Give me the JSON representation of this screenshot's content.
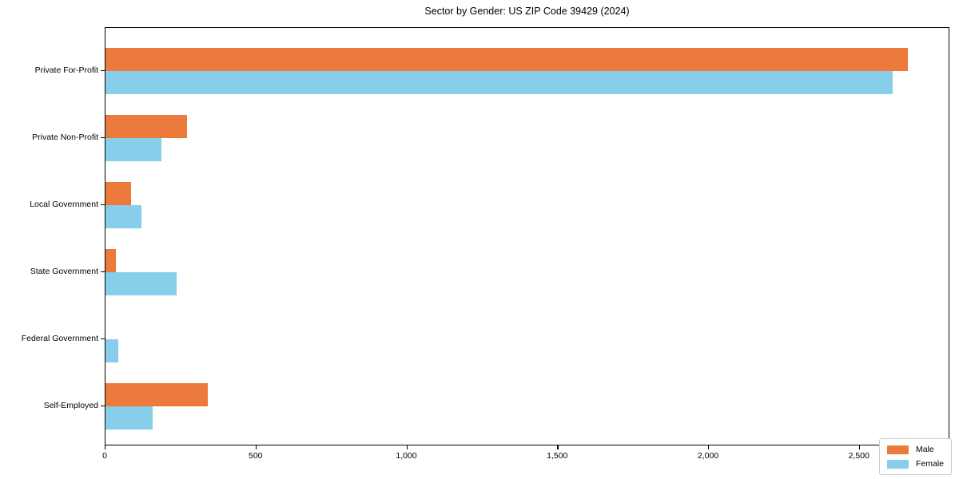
{
  "chart_data": {
    "type": "bar",
    "orientation": "horizontal",
    "title": "Sector by Gender: US ZIP Code 39429 (2024)",
    "categories": [
      "Private For-Profit",
      "Private Non-Profit",
      "Local Government",
      "State Government",
      "Federal Government",
      "Self-Employed"
    ],
    "series": [
      {
        "name": "Male",
        "color": "#ec7a3d",
        "values": [
          2660,
          270,
          85,
          35,
          0,
          340
        ]
      },
      {
        "name": "Female",
        "color": "#87ceeb",
        "values": [
          2610,
          185,
          120,
          235,
          42,
          155
        ]
      }
    ],
    "xlabel": "",
    "ylabel": "",
    "xlim": [
      0,
      2800
    ],
    "x_ticks": [
      {
        "value": 0,
        "label": "0"
      },
      {
        "value": 500,
        "label": "500"
      },
      {
        "value": 1000,
        "label": "1,000"
      },
      {
        "value": 1500,
        "label": "1,500"
      },
      {
        "value": 2000,
        "label": "2,000"
      },
      {
        "value": 2500,
        "label": "2,500"
      }
    ],
    "grid": false,
    "legend_position": "lower right",
    "background_color": "#ffffff",
    "spine_color": "#000000"
  }
}
